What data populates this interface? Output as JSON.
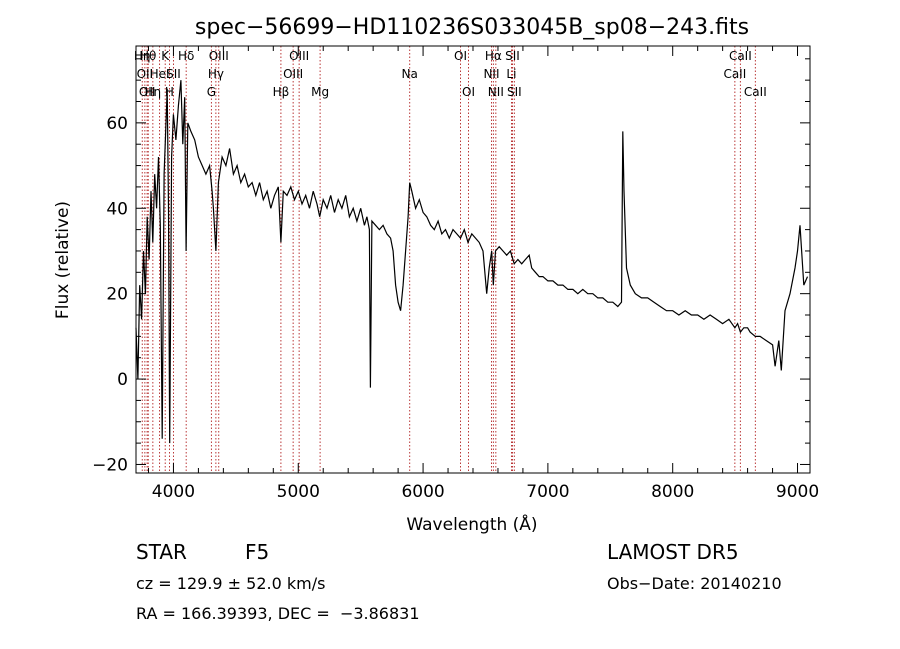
{
  "chart_data": {
    "type": "line",
    "title": "spec−56699−HD110236S033045B_sp08−243.fits",
    "xlabel": "Wavelength (Å)",
    "ylabel": "Flux (relative)",
    "xlim": [
      3700,
      9100
    ],
    "ylim": [
      -22,
      78
    ],
    "x_ticks": [
      {
        "v": 4000,
        "label": "4000"
      },
      {
        "v": 5000,
        "label": "5000"
      },
      {
        "v": 6000,
        "label": "6000"
      },
      {
        "v": 7000,
        "label": "7000"
      },
      {
        "v": 8000,
        "label": "8000"
      },
      {
        "v": 9000,
        "label": "9000"
      }
    ],
    "y_ticks": [
      {
        "v": -20,
        "label": "−20"
      },
      {
        "v": 0,
        "label": "0"
      },
      {
        "v": 20,
        "label": "20"
      },
      {
        "v": 40,
        "label": "40"
      },
      {
        "v": 60,
        "label": "60"
      }
    ],
    "line_color": "#000000",
    "marker_color": "#b22222",
    "spectrum": [
      [
        3700,
        12
      ],
      [
        3715,
        0
      ],
      [
        3730,
        22
      ],
      [
        3745,
        14
      ],
      [
        3760,
        30
      ],
      [
        3775,
        20
      ],
      [
        3790,
        38
      ],
      [
        3805,
        28
      ],
      [
        3820,
        44
      ],
      [
        3835,
        32
      ],
      [
        3850,
        48
      ],
      [
        3865,
        40
      ],
      [
        3880,
        52
      ],
      [
        3895,
        36
      ],
      [
        3910,
        -14
      ],
      [
        3925,
        48
      ],
      [
        3940,
        60
      ],
      [
        3950,
        68
      ],
      [
        3960,
        40
      ],
      [
        3970,
        -15
      ],
      [
        3985,
        52
      ],
      [
        4000,
        62
      ],
      [
        4020,
        56
      ],
      [
        4040,
        64
      ],
      [
        4060,
        70
      ],
      [
        4075,
        55
      ],
      [
        4090,
        66
      ],
      [
        4101,
        30
      ],
      [
        4115,
        60
      ],
      [
        4140,
        58
      ],
      [
        4170,
        56
      ],
      [
        4200,
        52
      ],
      [
        4230,
        50
      ],
      [
        4260,
        48
      ],
      [
        4290,
        50
      ],
      [
        4310,
        44
      ],
      [
        4320,
        40
      ],
      [
        4340,
        30
      ],
      [
        4360,
        46
      ],
      [
        4390,
        52
      ],
      [
        4420,
        50
      ],
      [
        4450,
        54
      ],
      [
        4480,
        48
      ],
      [
        4510,
        50
      ],
      [
        4540,
        46
      ],
      [
        4570,
        48
      ],
      [
        4600,
        45
      ],
      [
        4630,
        46
      ],
      [
        4660,
        43
      ],
      [
        4690,
        46
      ],
      [
        4720,
        42
      ],
      [
        4750,
        44
      ],
      [
        4780,
        40
      ],
      [
        4810,
        43
      ],
      [
        4840,
        45
      ],
      [
        4861,
        32
      ],
      [
        4880,
        44
      ],
      [
        4910,
        43
      ],
      [
        4940,
        45
      ],
      [
        4970,
        42
      ],
      [
        5000,
        44
      ],
      [
        5030,
        41
      ],
      [
        5060,
        43
      ],
      [
        5090,
        40
      ],
      [
        5120,
        44
      ],
      [
        5150,
        41
      ],
      [
        5172,
        38
      ],
      [
        5200,
        42
      ],
      [
        5230,
        40
      ],
      [
        5260,
        43
      ],
      [
        5290,
        39
      ],
      [
        5320,
        42
      ],
      [
        5350,
        40
      ],
      [
        5380,
        43
      ],
      [
        5410,
        38
      ],
      [
        5440,
        40
      ],
      [
        5470,
        37
      ],
      [
        5500,
        40
      ],
      [
        5530,
        36
      ],
      [
        5550,
        38
      ],
      [
        5570,
        35
      ],
      [
        5578,
        -2
      ],
      [
        5590,
        37
      ],
      [
        5620,
        36
      ],
      [
        5650,
        35
      ],
      [
        5680,
        36
      ],
      [
        5710,
        34
      ],
      [
        5740,
        33
      ],
      [
        5760,
        30
      ],
      [
        5780,
        22
      ],
      [
        5800,
        18
      ],
      [
        5820,
        16
      ],
      [
        5840,
        22
      ],
      [
        5860,
        30
      ],
      [
        5880,
        38
      ],
      [
        5893,
        46
      ],
      [
        5910,
        44
      ],
      [
        5940,
        40
      ],
      [
        5970,
        42
      ],
      [
        6000,
        39
      ],
      [
        6030,
        38
      ],
      [
        6060,
        36
      ],
      [
        6090,
        35
      ],
      [
        6120,
        37
      ],
      [
        6150,
        34
      ],
      [
        6180,
        35
      ],
      [
        6210,
        33
      ],
      [
        6240,
        35
      ],
      [
        6270,
        34
      ],
      [
        6300,
        33
      ],
      [
        6330,
        35
      ],
      [
        6360,
        32
      ],
      [
        6390,
        34
      ],
      [
        6420,
        33
      ],
      [
        6450,
        32
      ],
      [
        6480,
        30
      ],
      [
        6510,
        20
      ],
      [
        6530,
        26
      ],
      [
        6550,
        30
      ],
      [
        6563,
        22
      ],
      [
        6580,
        30
      ],
      [
        6610,
        31
      ],
      [
        6640,
        30
      ],
      [
        6670,
        29
      ],
      [
        6700,
        30
      ],
      [
        6730,
        27
      ],
      [
        6760,
        28
      ],
      [
        6790,
        27
      ],
      [
        6820,
        28
      ],
      [
        6850,
        29
      ],
      [
        6870,
        26
      ],
      [
        6900,
        25
      ],
      [
        6930,
        24
      ],
      [
        6960,
        24
      ],
      [
        7000,
        23
      ],
      [
        7040,
        23
      ],
      [
        7080,
        22
      ],
      [
        7120,
        22
      ],
      [
        7160,
        21
      ],
      [
        7200,
        21
      ],
      [
        7240,
        20
      ],
      [
        7280,
        21
      ],
      [
        7320,
        20
      ],
      [
        7360,
        20
      ],
      [
        7400,
        19
      ],
      [
        7440,
        19
      ],
      [
        7480,
        18
      ],
      [
        7520,
        18
      ],
      [
        7560,
        17
      ],
      [
        7590,
        18
      ],
      [
        7600,
        58
      ],
      [
        7610,
        44
      ],
      [
        7630,
        26
      ],
      [
        7660,
        22
      ],
      [
        7700,
        20
      ],
      [
        7750,
        19
      ],
      [
        7800,
        19
      ],
      [
        7850,
        18
      ],
      [
        7900,
        17
      ],
      [
        7950,
        16
      ],
      [
        8000,
        16
      ],
      [
        8050,
        15
      ],
      [
        8100,
        16
      ],
      [
        8150,
        15
      ],
      [
        8200,
        15
      ],
      [
        8250,
        14
      ],
      [
        8300,
        15
      ],
      [
        8350,
        14
      ],
      [
        8400,
        13
      ],
      [
        8450,
        14
      ],
      [
        8498,
        12
      ],
      [
        8520,
        13
      ],
      [
        8542,
        11
      ],
      [
        8570,
        12
      ],
      [
        8600,
        12
      ],
      [
        8620,
        11
      ],
      [
        8662,
        10
      ],
      [
        8700,
        10
      ],
      [
        8750,
        9
      ],
      [
        8800,
        8
      ],
      [
        8820,
        3
      ],
      [
        8850,
        9
      ],
      [
        8870,
        2
      ],
      [
        8900,
        16
      ],
      [
        8940,
        20
      ],
      [
        8980,
        26
      ],
      [
        9000,
        30
      ],
      [
        9020,
        36
      ],
      [
        9050,
        22
      ],
      [
        9080,
        24
      ]
    ],
    "lines": [
      {
        "lambda": 3750,
        "label": "Hη",
        "row": 0
      },
      {
        "lambda": 3771,
        "label": "OII",
        "row": 1
      },
      {
        "lambda": 3789,
        "label": "OII",
        "row": 2
      },
      {
        "lambda": 3798,
        "label": "Hθ",
        "row": 0
      },
      {
        "lambda": 3835,
        "label": "Hη",
        "row": 2
      },
      {
        "lambda": 3889,
        "label": "HeI",
        "row": 1
      },
      {
        "lambda": 3934,
        "label": "K",
        "row": 0
      },
      {
        "lambda": 3968,
        "label": "H",
        "row": 2
      },
      {
        "lambda": 4000,
        "label": "SII",
        "row": 1
      },
      {
        "lambda": 4102,
        "label": "Hδ",
        "row": 0
      },
      {
        "lambda": 4304,
        "label": "G",
        "row": 2
      },
      {
        "lambda": 4340,
        "label": "Hγ",
        "row": 1
      },
      {
        "lambda": 4363,
        "label": "OIII",
        "row": 0
      },
      {
        "lambda": 4861,
        "label": "Hβ",
        "row": 2
      },
      {
        "lambda": 4959,
        "label": "OIII",
        "row": 1
      },
      {
        "lambda": 5007,
        "label": "OIII",
        "row": 0
      },
      {
        "lambda": 5175,
        "label": "Mg",
        "row": 2
      },
      {
        "lambda": 5893,
        "label": "Na",
        "row": 1
      },
      {
        "lambda": 6300,
        "label": "OI",
        "row": 0
      },
      {
        "lambda": 6364,
        "label": "OI",
        "row": 2
      },
      {
        "lambda": 6548,
        "label": "NII",
        "row": 1
      },
      {
        "lambda": 6563,
        "label": "Hα",
        "row": 0
      },
      {
        "lambda": 6583,
        "label": "NII",
        "row": 2
      },
      {
        "lambda": 6708,
        "label": "Li",
        "row": 1
      },
      {
        "lambda": 6716,
        "label": "SII",
        "row": 0
      },
      {
        "lambda": 6731,
        "label": "SII",
        "row": 2
      },
      {
        "lambda": 8498,
        "label": "CaII",
        "row": 1
      },
      {
        "lambda": 8542,
        "label": "CaII",
        "row": 0
      },
      {
        "lambda": 8662,
        "label": "CaII",
        "row": 2
      }
    ]
  },
  "info": {
    "class": "STAR",
    "subclass": "F5",
    "survey": "LAMOST DR5",
    "redshift": "cz = 129.9 ± 52.0 km/s",
    "obs_date": "Obs−Date: 20140210",
    "coords": "RA = 166.39393, DEC =  −3.86831"
  }
}
